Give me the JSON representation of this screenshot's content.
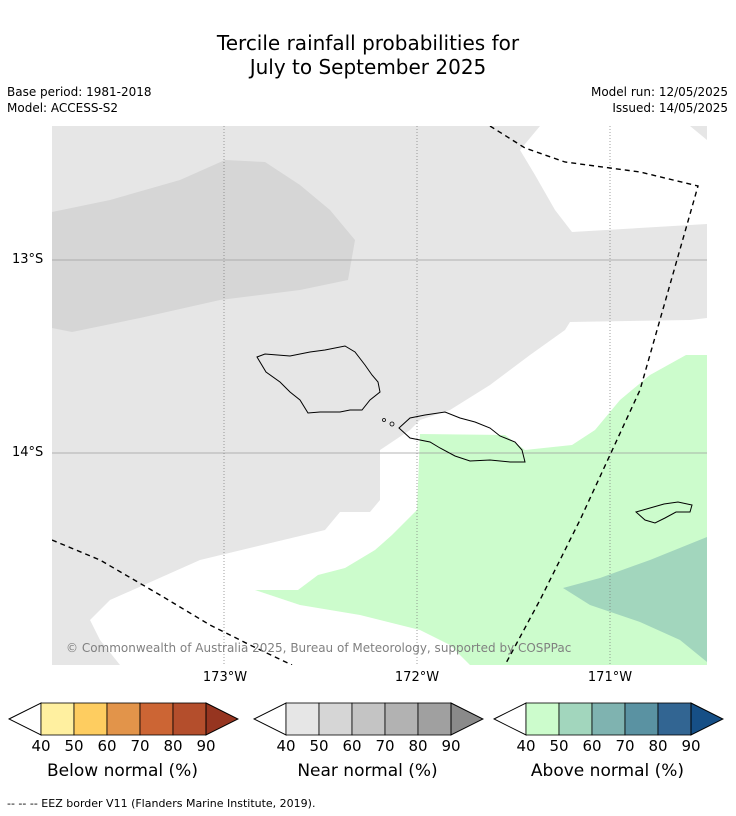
{
  "title_line1": "Tercile rainfall probabilities for",
  "title_line2": "July to September 2025",
  "base_period": "Base period: 1981-2018",
  "model": "Model: ACCESS-S2",
  "model_run": "Model run: 12/05/2025",
  "issued": "Issued: 14/05/2025",
  "lat_labels": [
    "13°S",
    "14°S"
  ],
  "lon_labels": [
    "173°W",
    "172°W",
    "171°W"
  ],
  "copyright": "© Commonwealth of Australia 2025, Bureau of Meteorology, supported by COSPPac",
  "colorbars": [
    {
      "label": "Below normal (%)",
      "ticks": [
        "40",
        "50",
        "60",
        "70",
        "80",
        "90"
      ],
      "colors": [
        "#ffffff",
        "#fff0a0",
        "#fecd60",
        "#e2944a",
        "#cc6534",
        "#b44e2c",
        "#963520"
      ]
    },
    {
      "label": "Near normal (%)",
      "ticks": [
        "40",
        "50",
        "60",
        "70",
        "80",
        "90"
      ],
      "colors": [
        "#ffffff",
        "#e6e6e6",
        "#d6d6d6",
        "#c4c4c4",
        "#b2b2b2",
        "#a0a0a0",
        "#8a8a8a"
      ]
    },
    {
      "label": "Above normal (%)",
      "ticks": [
        "40",
        "50",
        "60",
        "70",
        "80",
        "90"
      ],
      "colors": [
        "#ffffff",
        "#ccfccc",
        "#a2d6bd",
        "#7fb3b0",
        "#5a92a2",
        "#326592",
        "#164f86"
      ]
    }
  ],
  "footer": "--  --  -- EEZ border V11 (Flanders Marine Institute, 2019)."
}
